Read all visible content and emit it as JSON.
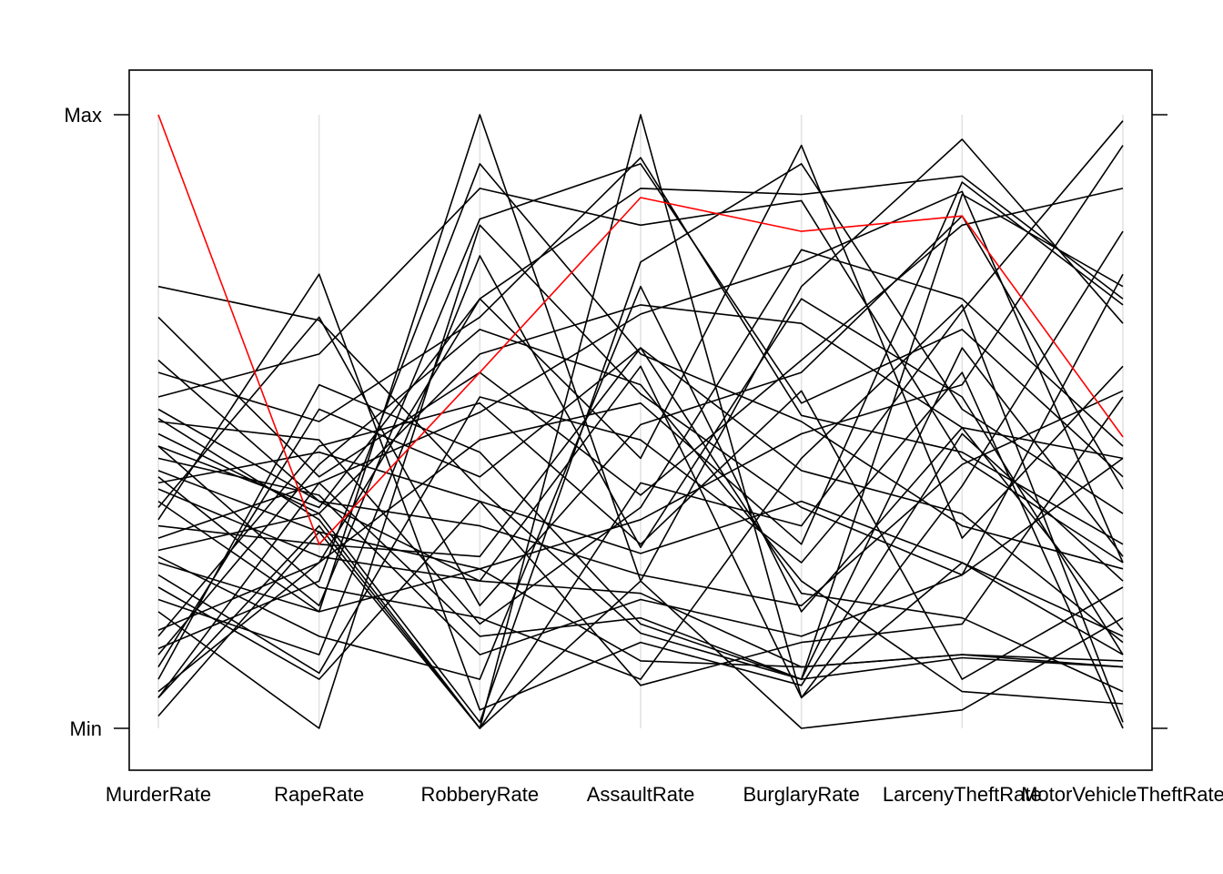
{
  "chart_data": {
    "type": "line",
    "subtype": "parallel-coordinates",
    "variables": [
      "MurderRate",
      "RapeRate",
      "RobberyRate",
      "AssaultRate",
      "BurglaryRate",
      "LarcenyTheftRate",
      "MotorVehicleTheftRate"
    ],
    "ylim_labels": {
      "max": "Max",
      "min": "Min"
    },
    "ylim": [
      0,
      1
    ],
    "grid": "vertical",
    "highlight_color": "#ff0000",
    "line_color": "#000000",
    "series": [
      {
        "highlighted": true,
        "values": [
          1.0,
          0.3,
          0.58,
          0.865,
          0.81,
          0.835,
          0.475
        ]
      },
      {
        "highlighted": false,
        "values": [
          0.36,
          0.67,
          0.2,
          0.495,
          0.58,
          0.835,
          0.39
        ]
      },
      {
        "highlighted": false,
        "values": [
          0.505,
          0.34,
          0.0,
          1.0,
          0.05,
          0.395,
          0.81
        ]
      },
      {
        "highlighted": false,
        "values": [
          0.4,
          0.45,
          0.37,
          0.285,
          0.37,
          0.27,
          0.15
        ]
      },
      {
        "highlighted": false,
        "values": [
          0.72,
          0.665,
          0.39,
          0.155,
          0.08,
          0.115,
          0.1
        ]
      },
      {
        "highlighted": false,
        "values": [
          0.05,
          0.4,
          0.515,
          0.675,
          0.76,
          0.875,
          0.27
        ]
      },
      {
        "highlighted": false,
        "values": [
          0.42,
          0.32,
          0.26,
          0.34,
          0.48,
          0.56,
          0.95
        ]
      },
      {
        "highlighted": false,
        "values": [
          0.13,
          0.24,
          0.92,
          0.61,
          0.5,
          0.33,
          0.26
        ]
      },
      {
        "highlighted": false,
        "values": [
          0.19,
          0.0,
          0.82,
          0.545,
          0.36,
          0.25,
          0.74
        ]
      },
      {
        "highlighted": false,
        "values": [
          0.58,
          0.5,
          0.67,
          0.93,
          0.51,
          0.45,
          0.3
        ]
      },
      {
        "highlighted": false,
        "values": [
          0.27,
          0.19,
          1.0,
          0.24,
          0.0,
          0.03,
          0.18
        ]
      },
      {
        "highlighted": false,
        "values": [
          0.06,
          0.27,
          0.47,
          0.53,
          0.3,
          0.89,
          0.69
        ]
      },
      {
        "highlighted": false,
        "values": [
          0.37,
          0.19,
          0.26,
          0.11,
          0.1,
          0.12,
          0.11
        ]
      },
      {
        "highlighted": false,
        "values": [
          0.48,
          0.35,
          0.61,
          0.69,
          0.66,
          0.49,
          0.44
        ]
      },
      {
        "highlighted": false,
        "values": [
          0.31,
          0.4,
          0.15,
          0.18,
          0.08,
          0.87,
          0.72
        ]
      },
      {
        "highlighted": false,
        "values": [
          0.21,
          0.12,
          0.77,
          0.295,
          0.7,
          0.54,
          0.12
        ]
      },
      {
        "highlighted": false,
        "values": [
          0.1,
          0.52,
          0.41,
          0.62,
          0.22,
          0.18,
          0.06
        ]
      },
      {
        "highlighted": false,
        "values": [
          0.16,
          0.27,
          0.7,
          0.44,
          0.95,
          0.31,
          0.59
        ]
      },
      {
        "highlighted": false,
        "values": [
          0.25,
          0.09,
          0.54,
          0.47,
          0.27,
          0.58,
          0.0
        ]
      },
      {
        "highlighted": false,
        "values": [
          0.6,
          0.37,
          0.33,
          0.25,
          0.2,
          0.43,
          0.55
        ]
      },
      {
        "highlighted": false,
        "values": [
          0.02,
          0.32,
          0.0,
          0.4,
          0.33,
          0.68,
          0.99
        ]
      },
      {
        "highlighted": false,
        "values": [
          0.34,
          0.74,
          0.03,
          0.14,
          0.07,
          0.48,
          0.24
        ]
      },
      {
        "highlighted": false,
        "values": [
          0.46,
          0.23,
          0.18,
          0.08,
          0.44,
          0.69,
          0.01
        ]
      },
      {
        "highlighted": false,
        "values": [
          0.54,
          0.61,
          0.88,
          0.82,
          0.86,
          0.44,
          0.27
        ]
      },
      {
        "highlighted": false,
        "values": [
          0.12,
          0.43,
          0.65,
          0.56,
          0.24,
          0.06,
          0.04
        ]
      },
      {
        "highlighted": false,
        "values": [
          0.28,
          0.15,
          0.08,
          0.72,
          0.19,
          0.49,
          0.16
        ]
      },
      {
        "highlighted": false,
        "values": [
          0.44,
          0.38,
          0.12,
          0.21,
          0.15,
          0.25,
          0.44
        ]
      },
      {
        "highlighted": false,
        "values": [
          0.67,
          0.41,
          0.58,
          0.38,
          0.6,
          0.82,
          0.88
        ]
      },
      {
        "highlighted": false,
        "values": [
          0.08,
          0.56,
          0.45,
          0.17,
          0.08,
          0.62,
          0.28
        ]
      },
      {
        "highlighted": false,
        "values": [
          0.5,
          0.47,
          0.17,
          0.36,
          0.78,
          0.7,
          0.46
        ]
      },
      {
        "highlighted": false,
        "values": [
          0.33,
          0.3,
          0.28,
          0.62,
          0.42,
          0.35,
          0.14
        ]
      },
      {
        "highlighted": false,
        "values": [
          0.23,
          0.08,
          0.37,
          0.07,
          0.14,
          0.17,
          0.54
        ]
      },
      {
        "highlighted": false,
        "values": [
          0.46,
          0.36,
          0.7,
          0.88,
          0.87,
          0.9,
          0.7
        ]
      },
      {
        "highlighted": false,
        "values": [
          0.39,
          0.28,
          0.24,
          0.59,
          0.05,
          0.27,
          0.12
        ]
      },
      {
        "highlighted": false,
        "values": [
          0.15,
          0.46,
          0.53,
          0.3,
          0.55,
          0.08,
          0.23
        ]
      },
      {
        "highlighted": false,
        "values": [
          0.29,
          0.35,
          0.01,
          0.76,
          0.92,
          0.52,
          0.35
        ]
      },
      {
        "highlighted": false,
        "values": [
          0.05,
          0.33,
          0.0,
          0.24,
          0.72,
          0.96,
          0.66
        ]
      },
      {
        "highlighted": false,
        "values": [
          0.52,
          0.37,
          0.24,
          0.22,
          0.1,
          0.12,
          0.1
        ]
      },
      {
        "highlighted": false,
        "values": [
          0.41,
          0.2,
          0.83,
          0.92,
          0.53,
          0.65,
          0.41
        ]
      }
    ]
  }
}
